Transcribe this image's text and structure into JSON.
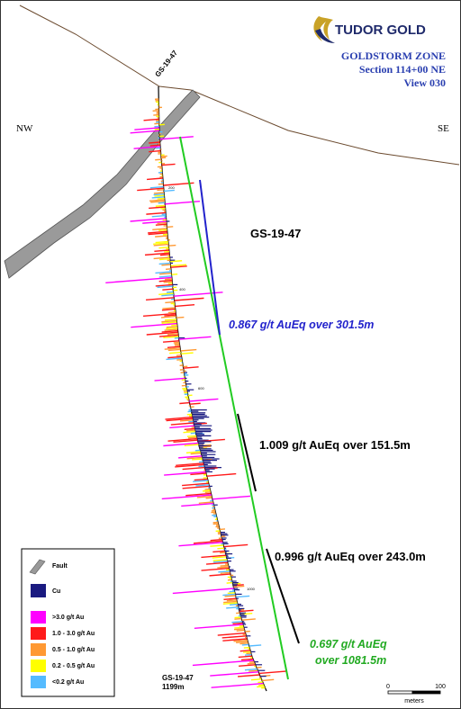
{
  "header": {
    "brand": "TUDOR GOLD",
    "zone": "GOLDSTORM ZONE",
    "section": "Section 114+00 NE",
    "view": "View 030",
    "brand_color": "#1f2a6b",
    "logo_icon": "gold-eagle-icon"
  },
  "orientation": {
    "left": "NW",
    "right": "SE"
  },
  "hole": {
    "collar_label": "GS-19-47",
    "title": "GS-19-47",
    "end_label_name": "GS-19-47",
    "end_label_depth": "1199m",
    "depth_ticks": [
      "200",
      "400",
      "600",
      "1000"
    ]
  },
  "intercepts": [
    {
      "text": "0.867 g/t AuEq over 301.5m",
      "color": "#2222cc",
      "italic": true
    },
    {
      "text": "1.009 g/t AuEq over 151.5m",
      "color": "#000000",
      "italic": false
    },
    {
      "text": "0.996 g/t AuEq over 243.0m",
      "color": "#000000",
      "italic": false
    },
    {
      "text": "0.697 g/t AuEq",
      "text2": "over 1081.5m",
      "color": "#22aa22",
      "italic": true
    }
  ],
  "legend": {
    "items": [
      {
        "label": "Fault",
        "color": "#999999",
        "icon": "fault-icon"
      },
      {
        "label": "Cu",
        "color": "#1a1a80",
        "icon": "cu-swatch"
      },
      {
        "label": ">3.0 g/t Au",
        "color": "#ff00ff",
        "icon": "swatch"
      },
      {
        "label": "1.0 - 3.0 g/t Au",
        "color": "#ff1a1a",
        "icon": "swatch"
      },
      {
        "label": "0.5 - 1.0 g/t Au",
        "color": "#ff9933",
        "icon": "swatch"
      },
      {
        "label": "0.2 - 0.5 g/t Au",
        "color": "#ffff00",
        "icon": "swatch"
      },
      {
        "label": "<0.2 g/t Au",
        "color": "#55bbff",
        "icon": "swatch"
      }
    ]
  },
  "scale_bar": {
    "start": "0",
    "end": "100",
    "unit": "meters"
  }
}
